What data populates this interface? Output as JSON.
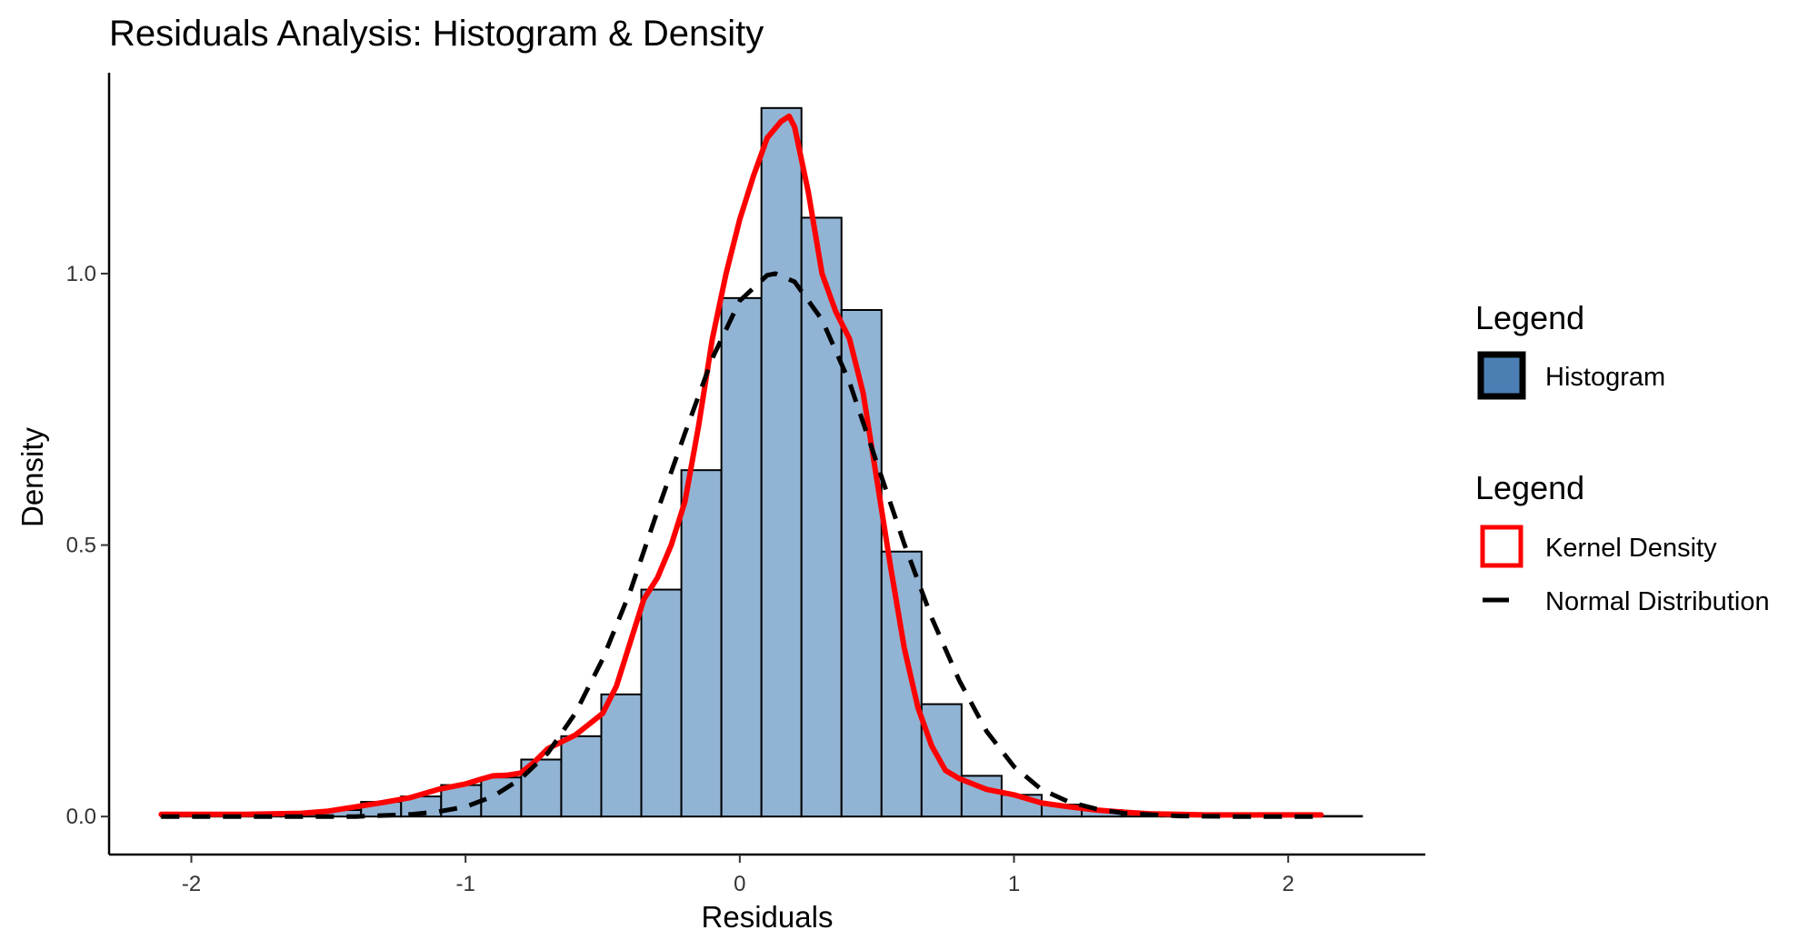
{
  "chart_data": {
    "type": "histogram",
    "title": "Residuals Analysis: Histogram & Density",
    "xlabel": "Residuals",
    "ylabel": "Density",
    "xlim": [
      -2.3,
      2.5
    ],
    "ylim": [
      -0.07,
      1.37
    ],
    "x_ticks": [
      -2,
      -1,
      0,
      1,
      2
    ],
    "x_tick_labels": [
      "-2",
      "-1",
      "0",
      "1",
      "2"
    ],
    "y_ticks": [
      0.0,
      0.5,
      1.0
    ],
    "y_tick_labels": [
      "0.0",
      "0.5",
      "1.0"
    ],
    "grid": false,
    "legend_position": "right",
    "histogram": {
      "bin_width": 0.146,
      "bins": [
        {
          "x0": -2.111,
          "x1": -1.965,
          "density": 0.004
        },
        {
          "x0": -1.965,
          "x1": -1.819,
          "density": 0.004
        },
        {
          "x0": -1.819,
          "x1": -1.673,
          "density": 0.004
        },
        {
          "x0": -1.673,
          "x1": -1.527,
          "density": 0.004
        },
        {
          "x0": -1.527,
          "x1": -1.381,
          "density": 0.012
        },
        {
          "x0": -1.381,
          "x1": -1.235,
          "density": 0.027
        },
        {
          "x0": -1.235,
          "x1": -1.089,
          "density": 0.037
        },
        {
          "x0": -1.089,
          "x1": -0.943,
          "density": 0.058
        },
        {
          "x0": -0.943,
          "x1": -0.797,
          "density": 0.072
        },
        {
          "x0": -0.797,
          "x1": -0.651,
          "density": 0.105
        },
        {
          "x0": -0.651,
          "x1": -0.505,
          "density": 0.148
        },
        {
          "x0": -0.505,
          "x1": -0.359,
          "density": 0.225
        },
        {
          "x0": -0.359,
          "x1": -0.213,
          "density": 0.418
        },
        {
          "x0": -0.213,
          "x1": -0.067,
          "density": 0.638
        },
        {
          "x0": -0.067,
          "x1": 0.079,
          "density": 0.955
        },
        {
          "x0": 0.079,
          "x1": 0.225,
          "density": 1.305
        },
        {
          "x0": 0.225,
          "x1": 0.371,
          "density": 1.103
        },
        {
          "x0": 0.371,
          "x1": 0.517,
          "density": 0.933
        },
        {
          "x0": 0.517,
          "x1": 0.663,
          "density": 0.488
        },
        {
          "x0": 0.663,
          "x1": 0.809,
          "density": 0.207
        },
        {
          "x0": 0.809,
          "x1": 0.955,
          "density": 0.075
        },
        {
          "x0": 0.955,
          "x1": 1.101,
          "density": 0.04
        },
        {
          "x0": 1.101,
          "x1": 1.247,
          "density": 0.022
        },
        {
          "x0": 1.247,
          "x1": 1.393,
          "density": 0.012
        },
        {
          "x0": 1.393,
          "x1": 1.539,
          "density": 0.004
        },
        {
          "x0": 1.539,
          "x1": 1.685,
          "density": 0.004
        },
        {
          "x0": 1.685,
          "x1": 1.831,
          "density": 0.004
        },
        {
          "x0": 1.831,
          "x1": 1.977,
          "density": 0.002
        },
        {
          "x0": 1.977,
          "x1": 2.123,
          "density": 0.002
        },
        {
          "x0": 2.123,
          "x1": 2.269,
          "density": 0.001
        }
      ]
    },
    "series": [
      {
        "name": "Kernel Density",
        "color": "#ff0000",
        "style": "solid",
        "x": [
          -2.11,
          -2.0,
          -1.8,
          -1.6,
          -1.5,
          -1.4,
          -1.3,
          -1.2,
          -1.1,
          -1.0,
          -0.95,
          -0.9,
          -0.85,
          -0.8,
          -0.75,
          -0.7,
          -0.6,
          -0.5,
          -0.45,
          -0.4,
          -0.35,
          -0.3,
          -0.25,
          -0.2,
          -0.15,
          -0.1,
          -0.05,
          0.0,
          0.05,
          0.1,
          0.15,
          0.18,
          0.2,
          0.25,
          0.3,
          0.35,
          0.4,
          0.45,
          0.5,
          0.55,
          0.6,
          0.65,
          0.7,
          0.75,
          0.8,
          0.85,
          0.9,
          1.0,
          1.1,
          1.2,
          1.3,
          1.4,
          1.5,
          1.6,
          1.7,
          1.8,
          1.9,
          2.0,
          2.12
        ],
        "y": [
          0.004,
          0.004,
          0.004,
          0.006,
          0.01,
          0.018,
          0.026,
          0.035,
          0.05,
          0.06,
          0.068,
          0.075,
          0.076,
          0.08,
          0.1,
          0.125,
          0.15,
          0.19,
          0.24,
          0.32,
          0.4,
          0.44,
          0.5,
          0.58,
          0.72,
          0.88,
          1.0,
          1.1,
          1.18,
          1.25,
          1.28,
          1.29,
          1.27,
          1.15,
          1.0,
          0.93,
          0.88,
          0.78,
          0.62,
          0.46,
          0.31,
          0.2,
          0.13,
          0.085,
          0.07,
          0.06,
          0.05,
          0.04,
          0.025,
          0.018,
          0.012,
          0.008,
          0.005,
          0.004,
          0.003,
          0.003,
          0.003,
          0.003,
          0.003
        ]
      },
      {
        "name": "Normal Distribution",
        "color": "#000000",
        "style": "dashed",
        "mean": 0.13,
        "sd": 0.4,
        "x": [
          -2.11,
          -2.0,
          -1.8,
          -1.6,
          -1.4,
          -1.2,
          -1.1,
          -1.0,
          -0.9,
          -0.8,
          -0.7,
          -0.6,
          -0.5,
          -0.4,
          -0.3,
          -0.2,
          -0.1,
          0.0,
          0.1,
          0.13,
          0.2,
          0.3,
          0.4,
          0.5,
          0.6,
          0.7,
          0.8,
          0.9,
          1.0,
          1.1,
          1.2,
          1.3,
          1.4,
          1.6,
          1.8,
          2.0,
          2.12
        ],
        "y": [
          0.0,
          0.0,
          0.0,
          0.0,
          0.0,
          0.004,
          0.009,
          0.018,
          0.037,
          0.069,
          0.117,
          0.19,
          0.29,
          0.414,
          0.563,
          0.706,
          0.844,
          0.95,
          0.997,
          1.0,
          0.985,
          0.915,
          0.8,
          0.651,
          0.502,
          0.366,
          0.251,
          0.157,
          0.092,
          0.05,
          0.027,
          0.014,
          0.006,
          0.001,
          0.0,
          0.0,
          0.0
        ]
      }
    ],
    "legend": {
      "groups": [
        {
          "title": "Legend",
          "items": [
            {
              "label": "Histogram",
              "key": "fill-box"
            }
          ]
        },
        {
          "title": "Legend",
          "items": [
            {
              "label": "Kernel Density",
              "key": "red-box"
            },
            {
              "label": "Normal Distribution",
              "key": "dashed-line"
            }
          ]
        }
      ]
    },
    "colors": {
      "bar_fill": "#92b4d4",
      "bar_stroke": "#000000",
      "legend_hist_fill": "#4b7fb4",
      "kde": "#ff0000",
      "normal": "#000000"
    }
  }
}
